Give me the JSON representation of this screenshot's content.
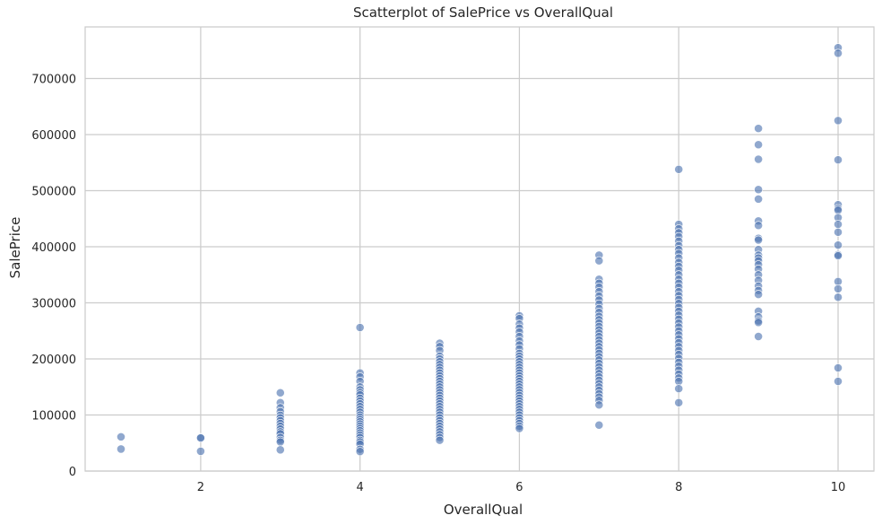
{
  "chart_data": {
    "type": "scatter",
    "title": "Scatterplot of SalePrice vs OverallQual",
    "xlabel": "OverallQual",
    "ylabel": "SalePrice",
    "xlim": [
      0.55,
      10.45
    ],
    "ylim": [
      0,
      792000
    ],
    "xticks": [
      2,
      4,
      6,
      8,
      10
    ],
    "yticks": [
      0,
      100000,
      200000,
      300000,
      400000,
      500000,
      600000,
      700000
    ],
    "grid": true,
    "point_color": "#4c72b0",
    "series": [
      {
        "points": [
          [
            1,
            61000
          ],
          [
            1,
            39300
          ],
          [
            2,
            60000
          ],
          [
            2,
            59000
          ],
          [
            2,
            35300
          ],
          [
            3,
            139600
          ],
          [
            3,
            122000
          ],
          [
            3,
            113000
          ],
          [
            3,
            106000
          ],
          [
            3,
            99500
          ],
          [
            3,
            95000
          ],
          [
            3,
            90000
          ],
          [
            3,
            85000
          ],
          [
            3,
            80000
          ],
          [
            3,
            75000
          ],
          [
            3,
            70000
          ],
          [
            3,
            66500
          ],
          [
            3,
            60000
          ],
          [
            3,
            55000
          ],
          [
            3,
            52000
          ],
          [
            3,
            37900
          ],
          [
            4,
            256000
          ],
          [
            4,
            175000
          ],
          [
            4,
            168000
          ],
          [
            4,
            160000
          ],
          [
            4,
            150000
          ],
          [
            4,
            145000
          ],
          [
            4,
            140000
          ],
          [
            4,
            136000
          ],
          [
            4,
            130000
          ],
          [
            4,
            125000
          ],
          [
            4,
            120000
          ],
          [
            4,
            115000
          ],
          [
            4,
            110000
          ],
          [
            4,
            105000
          ],
          [
            4,
            100000
          ],
          [
            4,
            96000
          ],
          [
            4,
            92000
          ],
          [
            4,
            88000
          ],
          [
            4,
            84000
          ],
          [
            4,
            80000
          ],
          [
            4,
            76000
          ],
          [
            4,
            72000
          ],
          [
            4,
            68000
          ],
          [
            4,
            64000
          ],
          [
            4,
            60000
          ],
          [
            4,
            55000
          ],
          [
            4,
            52000
          ],
          [
            4,
            48000
          ],
          [
            4,
            39000
          ],
          [
            4,
            34900
          ],
          [
            5,
            228000
          ],
          [
            5,
            222000
          ],
          [
            5,
            215000
          ],
          [
            5,
            205000
          ],
          [
            5,
            200000
          ],
          [
            5,
            195000
          ],
          [
            5,
            190000
          ],
          [
            5,
            185000
          ],
          [
            5,
            180000
          ],
          [
            5,
            175000
          ],
          [
            5,
            170000
          ],
          [
            5,
            165000
          ],
          [
            5,
            160000
          ],
          [
            5,
            155000
          ],
          [
            5,
            150000
          ],
          [
            5,
            145000
          ],
          [
            5,
            140000
          ],
          [
            5,
            135000
          ],
          [
            5,
            130000
          ],
          [
            5,
            125000
          ],
          [
            5,
            120000
          ],
          [
            5,
            115000
          ],
          [
            5,
            110000
          ],
          [
            5,
            105000
          ],
          [
            5,
            100000
          ],
          [
            5,
            95000
          ],
          [
            5,
            90000
          ],
          [
            5,
            85000
          ],
          [
            5,
            80000
          ],
          [
            5,
            75000
          ],
          [
            5,
            70000
          ],
          [
            5,
            65000
          ],
          [
            5,
            60000
          ],
          [
            5,
            55000
          ],
          [
            6,
            277000
          ],
          [
            6,
            272000
          ],
          [
            6,
            262000
          ],
          [
            6,
            255000
          ],
          [
            6,
            248000
          ],
          [
            6,
            240000
          ],
          [
            6,
            232000
          ],
          [
            6,
            225000
          ],
          [
            6,
            218000
          ],
          [
            6,
            210000
          ],
          [
            6,
            205000
          ],
          [
            6,
            200000
          ],
          [
            6,
            195000
          ],
          [
            6,
            190000
          ],
          [
            6,
            185000
          ],
          [
            6,
            180000
          ],
          [
            6,
            175000
          ],
          [
            6,
            170000
          ],
          [
            6,
            165000
          ],
          [
            6,
            160000
          ],
          [
            6,
            155000
          ],
          [
            6,
            150000
          ],
          [
            6,
            145000
          ],
          [
            6,
            140000
          ],
          [
            6,
            135000
          ],
          [
            6,
            130000
          ],
          [
            6,
            125000
          ],
          [
            6,
            120000
          ],
          [
            6,
            115000
          ],
          [
            6,
            110000
          ],
          [
            6,
            105000
          ],
          [
            6,
            100000
          ],
          [
            6,
            95000
          ],
          [
            6,
            90000
          ],
          [
            6,
            85000
          ],
          [
            6,
            80000
          ],
          [
            6,
            76000
          ],
          [
            7,
            385000
          ],
          [
            7,
            375000
          ],
          [
            7,
            342000
          ],
          [
            7,
            335000
          ],
          [
            7,
            328000
          ],
          [
            7,
            320000
          ],
          [
            7,
            312000
          ],
          [
            7,
            305000
          ],
          [
            7,
            298000
          ],
          [
            7,
            290000
          ],
          [
            7,
            283000
          ],
          [
            7,
            276000
          ],
          [
            7,
            270000
          ],
          [
            7,
            264000
          ],
          [
            7,
            258000
          ],
          [
            7,
            252000
          ],
          [
            7,
            246000
          ],
          [
            7,
            240000
          ],
          [
            7,
            234000
          ],
          [
            7,
            228000
          ],
          [
            7,
            222000
          ],
          [
            7,
            216000
          ],
          [
            7,
            210000
          ],
          [
            7,
            204000
          ],
          [
            7,
            198000
          ],
          [
            7,
            192000
          ],
          [
            7,
            186000
          ],
          [
            7,
            180000
          ],
          [
            7,
            174000
          ],
          [
            7,
            168000
          ],
          [
            7,
            162000
          ],
          [
            7,
            156000
          ],
          [
            7,
            150000
          ],
          [
            7,
            144000
          ],
          [
            7,
            138000
          ],
          [
            7,
            132000
          ],
          [
            7,
            126000
          ],
          [
            7,
            118000
          ],
          [
            7,
            82000
          ],
          [
            8,
            538000
          ],
          [
            8,
            440000
          ],
          [
            8,
            432000
          ],
          [
            8,
            425000
          ],
          [
            8,
            418000
          ],
          [
            8,
            410000
          ],
          [
            8,
            402000
          ],
          [
            8,
            395000
          ],
          [
            8,
            388000
          ],
          [
            8,
            380000
          ],
          [
            8,
            372000
          ],
          [
            8,
            365000
          ],
          [
            8,
            358000
          ],
          [
            8,
            350000
          ],
          [
            8,
            342000
          ],
          [
            8,
            335000
          ],
          [
            8,
            328000
          ],
          [
            8,
            320000
          ],
          [
            8,
            313000
          ],
          [
            8,
            306000
          ],
          [
            8,
            299000
          ],
          [
            8,
            292000
          ],
          [
            8,
            285000
          ],
          [
            8,
            278000
          ],
          [
            8,
            271000
          ],
          [
            8,
            264000
          ],
          [
            8,
            257000
          ],
          [
            8,
            250000
          ],
          [
            8,
            243000
          ],
          [
            8,
            236000
          ],
          [
            8,
            229000
          ],
          [
            8,
            222000
          ],
          [
            8,
            215000
          ],
          [
            8,
            208000
          ],
          [
            8,
            201000
          ],
          [
            8,
            194000
          ],
          [
            8,
            187000
          ],
          [
            8,
            180000
          ],
          [
            8,
            173000
          ],
          [
            8,
            166000
          ],
          [
            8,
            160000
          ],
          [
            8,
            147000
          ],
          [
            8,
            122000
          ],
          [
            9,
            611000
          ],
          [
            9,
            582000
          ],
          [
            9,
            556000
          ],
          [
            9,
            502000
          ],
          [
            9,
            485000
          ],
          [
            9,
            446000
          ],
          [
            9,
            438000
          ],
          [
            9,
            415000
          ],
          [
            9,
            412000
          ],
          [
            9,
            395000
          ],
          [
            9,
            385000
          ],
          [
            9,
            380000
          ],
          [
            9,
            375000
          ],
          [
            9,
            368000
          ],
          [
            9,
            360000
          ],
          [
            9,
            350000
          ],
          [
            9,
            340000
          ],
          [
            9,
            330000
          ],
          [
            9,
            322000
          ],
          [
            9,
            315000
          ],
          [
            9,
            285000
          ],
          [
            9,
            275000
          ],
          [
            9,
            268000
          ],
          [
            9,
            265000
          ],
          [
            9,
            240000
          ],
          [
            10,
            755000
          ],
          [
            10,
            745000
          ],
          [
            10,
            625000
          ],
          [
            10,
            555000
          ],
          [
            10,
            475000
          ],
          [
            10,
            468000
          ],
          [
            10,
            465000
          ],
          [
            10,
            452000
          ],
          [
            10,
            440000
          ],
          [
            10,
            426000
          ],
          [
            10,
            403000
          ],
          [
            10,
            386000
          ],
          [
            10,
            384000
          ],
          [
            10,
            338000
          ],
          [
            10,
            325000
          ],
          [
            10,
            310000
          ],
          [
            10,
            184000
          ],
          [
            10,
            160000
          ]
        ]
      }
    ]
  }
}
